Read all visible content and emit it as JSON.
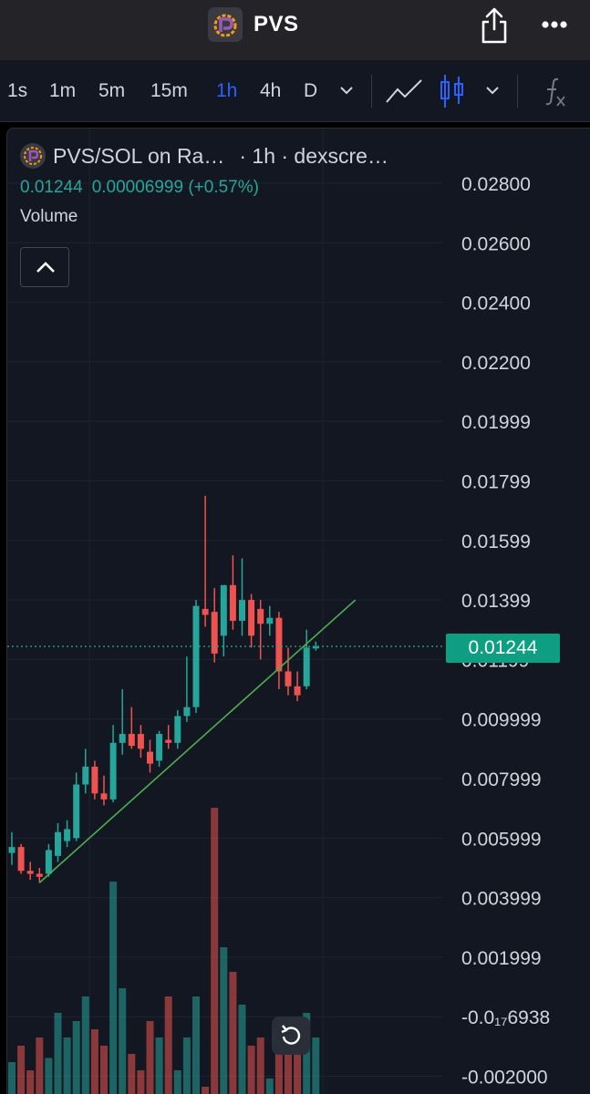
{
  "header": {
    "title": "PVS",
    "logo_icon": "pvs-logo-icon",
    "share_icon": "share-icon",
    "more_icon": "more-dots-icon"
  },
  "toolbar": {
    "timeframes": [
      "1s",
      "1m",
      "5m",
      "15m",
      "1h",
      "4h",
      "D"
    ],
    "active_timeframe": "1h",
    "icons": [
      "chevron-down-icon",
      "line-chart-icon",
      "candlestick-icon",
      "chevron-down-icon",
      "fx-indicators-icon"
    ]
  },
  "legend": {
    "symbol_text": "PVS/SOL on Ra…",
    "interval_text": "· 1h · dexscre…",
    "price": "0.01244",
    "change": "0.00006999 (+0.57%)",
    "volume_label": "Volume"
  },
  "price_tag": "0.01244",
  "colors": {
    "up": "#26a69a",
    "down": "#ef5350",
    "trendline": "#4caf50",
    "background": "#131722"
  },
  "chart_data": {
    "type": "candlestick",
    "y_axis_labels": [
      "0.02800",
      "0.02600",
      "0.02400",
      "0.02200",
      "0.01999",
      "0.01799",
      "0.01599",
      "0.01399",
      "0.01199",
      "0.009999",
      "0.007999",
      "0.005999",
      "0.003999",
      "0.001999",
      "-0.0₁₇6938",
      "-0.002000"
    ],
    "ylim": [
      -0.002,
      0.028
    ],
    "last_price": 0.01244,
    "candles": [
      {
        "o": 0.0055,
        "h": 0.0062,
        "l": 0.0051,
        "c": 0.0057
      },
      {
        "o": 0.0057,
        "h": 0.0058,
        "l": 0.0048,
        "c": 0.0049
      },
      {
        "o": 0.0049,
        "h": 0.0052,
        "l": 0.0046,
        "c": 0.0048
      },
      {
        "o": 0.0048,
        "h": 0.005,
        "l": 0.0045,
        "c": 0.0047
      },
      {
        "o": 0.0048,
        "h": 0.0058,
        "l": 0.0047,
        "c": 0.0056
      },
      {
        "o": 0.0054,
        "h": 0.0065,
        "l": 0.0052,
        "c": 0.0062
      },
      {
        "o": 0.0059,
        "h": 0.0066,
        "l": 0.0057,
        "c": 0.0063
      },
      {
        "o": 0.006,
        "h": 0.0082,
        "l": 0.0059,
        "c": 0.0078
      },
      {
        "o": 0.0078,
        "h": 0.009,
        "l": 0.0075,
        "c": 0.0084
      },
      {
        "o": 0.0084,
        "h": 0.0086,
        "l": 0.0073,
        "c": 0.0075
      },
      {
        "o": 0.0075,
        "h": 0.0081,
        "l": 0.0071,
        "c": 0.0073
      },
      {
        "o": 0.0073,
        "h": 0.0098,
        "l": 0.0072,
        "c": 0.0092
      },
      {
        "o": 0.0092,
        "h": 0.011,
        "l": 0.0088,
        "c": 0.0095
      },
      {
        "o": 0.0095,
        "h": 0.0104,
        "l": 0.009,
        "c": 0.0091
      },
      {
        "o": 0.0095,
        "h": 0.0098,
        "l": 0.0087,
        "c": 0.009
      },
      {
        "o": 0.0089,
        "h": 0.0093,
        "l": 0.0082,
        "c": 0.0085
      },
      {
        "o": 0.0086,
        "h": 0.0096,
        "l": 0.0084,
        "c": 0.0095
      },
      {
        "o": 0.0093,
        "h": 0.0098,
        "l": 0.009,
        "c": 0.0092
      },
      {
        "o": 0.0092,
        "h": 0.0103,
        "l": 0.009,
        "c": 0.0101
      },
      {
        "o": 0.0101,
        "h": 0.0121,
        "l": 0.0099,
        "c": 0.0104
      },
      {
        "o": 0.0104,
        "h": 0.014,
        "l": 0.0102,
        "c": 0.0138
      },
      {
        "o": 0.0137,
        "h": 0.0175,
        "l": 0.0131,
        "c": 0.0135
      },
      {
        "o": 0.0136,
        "h": 0.0144,
        "l": 0.0119,
        "c": 0.0122
      },
      {
        "o": 0.0128,
        "h": 0.0145,
        "l": 0.0121,
        "c": 0.0145
      },
      {
        "o": 0.0145,
        "h": 0.0155,
        "l": 0.013,
        "c": 0.0133
      },
      {
        "o": 0.0133,
        "h": 0.0154,
        "l": 0.0128,
        "c": 0.014
      },
      {
        "o": 0.014,
        "h": 0.0142,
        "l": 0.0124,
        "c": 0.0128
      },
      {
        "o": 0.0137,
        "h": 0.014,
        "l": 0.012,
        "c": 0.0132
      },
      {
        "o": 0.0132,
        "h": 0.0138,
        "l": 0.0128,
        "c": 0.0134
      },
      {
        "o": 0.0134,
        "h": 0.0136,
        "l": 0.011,
        "c": 0.0116
      },
      {
        "o": 0.0116,
        "h": 0.0124,
        "l": 0.0108,
        "c": 0.0111
      },
      {
        "o": 0.0111,
        "h": 0.0116,
        "l": 0.0106,
        "c": 0.0108
      },
      {
        "o": 0.0111,
        "h": 0.013,
        "l": 0.011,
        "c": 0.0124
      },
      {
        "o": 0.01237,
        "h": 0.0126,
        "l": 0.0123,
        "c": 0.01244
      }
    ],
    "volume": [
      8,
      12,
      6,
      14,
      9,
      20,
      14,
      18,
      24,
      16,
      12,
      52,
      26,
      10,
      6,
      18,
      14,
      24,
      6,
      14,
      24,
      2,
      70,
      36,
      30,
      22,
      12,
      14,
      4,
      10,
      16,
      12,
      20,
      14
    ],
    "trendline": [
      {
        "x": 3,
        "y": 0.0045
      },
      {
        "x": 33,
        "y": 0.0123
      },
      {
        "x": 37.3,
        "y": 0.014
      }
    ]
  }
}
